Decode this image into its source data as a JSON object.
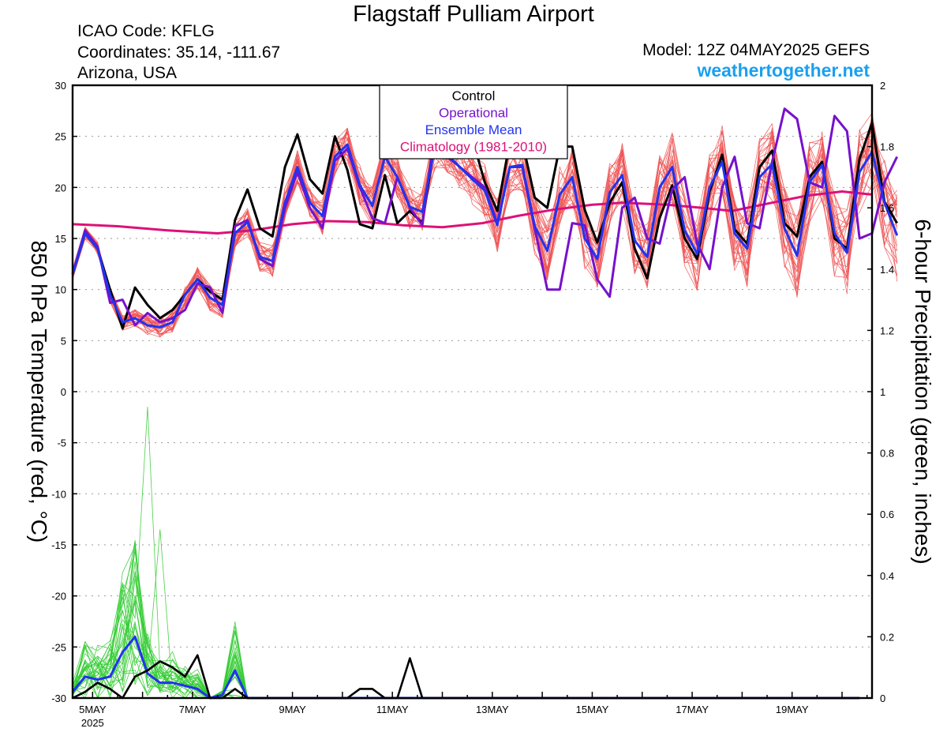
{
  "header": {
    "title": "Flagstaff Pulliam Airport",
    "icao": "ICAO Code: KFLG",
    "coords": "Coordinates: 35.14, -111.67",
    "region": "Arizona, USA",
    "model": "Model: 12Z 04MAY2025 GEFS",
    "site": "weathertogether.net"
  },
  "chart_data": {
    "type": "line",
    "left_axis": {
      "label": "850 hPa Temperature (red, °C)",
      "range": [
        -30,
        30
      ],
      "ticks": [
        30,
        25,
        20,
        15,
        10,
        5,
        0,
        -5,
        -10,
        -15,
        -20,
        -25,
        -30
      ]
    },
    "right_axis": {
      "label": "6-hour Precipitation (green, inches)",
      "range": [
        0,
        2
      ],
      "ticks": [
        "2",
        "1.8",
        "1.6",
        "1.4",
        "1.2",
        "1",
        "0.8",
        "0.6",
        "0.4",
        "0.2",
        "0"
      ]
    },
    "x_axis": {
      "range_days": [
        4.6,
        20.6
      ],
      "ticks": [
        {
          "day": 5,
          "label": "5MAY"
        },
        {
          "day": 7,
          "label": "7MAY"
        },
        {
          "day": 9,
          "label": "9MAY"
        },
        {
          "day": 11,
          "label": "11MAY"
        },
        {
          "day": 13,
          "label": "13MAY"
        },
        {
          "day": 15,
          "label": "15MAY"
        },
        {
          "day": 17,
          "label": "17MAY"
        },
        {
          "day": 19,
          "label": "19MAY"
        }
      ],
      "year_label": "2025"
    },
    "legend": {
      "placement": "top-center",
      "entries": [
        {
          "label": "Control",
          "color": "#000000"
        },
        {
          "label": "Operational",
          "color": "#7711cc"
        },
        {
          "label": "Ensemble Mean",
          "color": "#2233ee"
        },
        {
          "label": "Climatology (1981-2010)",
          "color": "#dd1177"
        }
      ]
    },
    "grid": "horizontal-dotted",
    "colors": {
      "members_temp": "#ee5555",
      "members_precip": "#33cc33",
      "control": "#000000",
      "operational": "#7711cc",
      "mean": "#2233ee",
      "climatology": "#dd1177"
    },
    "temperature": {
      "control": [
        11.5,
        15.5,
        14,
        10,
        6.2,
        10.2,
        8.5,
        7.2,
        8,
        9.5,
        11,
        9.8,
        9,
        16.8,
        19.8,
        16,
        15.2,
        22,
        25.2,
        20.8,
        19.4,
        25,
        21.7,
        16.4,
        16,
        21.2,
        16.5,
        17.7,
        16.5,
        24.5,
        26,
        25,
        24.8,
        20.5,
        17.7,
        24.5,
        24.5,
        19,
        18,
        24,
        24,
        17.8,
        14.6,
        18.5,
        20.5,
        14,
        11.1,
        17,
        20.2,
        15,
        13,
        19.6,
        23.2,
        15.9,
        14.5,
        22,
        23.6,
        16.5,
        15.2,
        21,
        22.5,
        15,
        14,
        22.8,
        26.3,
        18.6,
        16.5
      ],
      "operational": [
        11.5,
        15.8,
        14.2,
        8.7,
        9,
        6.5,
        7.7,
        6.8,
        7.2,
        8,
        10.6,
        10.2,
        7.7,
        16.2,
        16.8,
        13,
        12.3,
        18,
        21.5,
        18,
        16,
        22.6,
        23.8,
        20,
        17,
        16.5,
        21,
        18,
        16.3,
        25.5,
        23,
        22,
        21,
        20,
        16.5,
        22,
        22,
        16,
        10,
        10,
        16.5,
        16.3,
        11,
        9.3,
        18,
        19,
        15,
        14.5,
        19.8,
        21,
        14.5,
        12,
        20,
        23,
        16.5,
        16,
        22.5,
        27.7,
        26.7,
        20.5,
        20,
        27,
        25.5,
        15,
        15.5,
        20.5,
        23
      ],
      "mean": [
        11.5,
        15.5,
        14,
        9.5,
        6.8,
        7.2,
        6.5,
        6.3,
        6.8,
        9.5,
        11,
        9.2,
        8.5,
        15.5,
        16.6,
        13.2,
        12.8,
        18.5,
        22,
        18.5,
        17.2,
        23,
        24.2,
        20.2,
        18.2,
        23,
        21,
        18.1,
        17.6,
        24,
        23.2,
        22,
        20.8,
        19.7,
        16.3,
        22,
        22.2,
        16.2,
        13.8,
        19.3,
        21,
        15,
        13,
        19.5,
        21.2,
        14.8,
        13.2,
        20,
        22,
        15.8,
        13.5,
        20,
        22.5,
        15.5,
        14,
        21,
        22.3,
        16,
        13.3,
        20.5,
        22.2,
        15.5,
        13.6,
        21.5,
        23.5,
        18.5,
        15.3
      ],
      "climatology": [
        [
          4.6,
          16.4
        ],
        [
          5.5,
          16.2
        ],
        [
          6.5,
          15.8
        ],
        [
          7.5,
          15.5
        ],
        [
          8.2,
          15.8
        ],
        [
          9.0,
          16.4
        ],
        [
          9.7,
          16.7
        ],
        [
          10.5,
          16.6
        ],
        [
          11.2,
          16.3
        ],
        [
          12.0,
          16.1
        ],
        [
          12.8,
          16.5
        ],
        [
          13.5,
          17.2
        ],
        [
          14.2,
          17.8
        ],
        [
          15.0,
          18.3
        ],
        [
          15.6,
          18.5
        ],
        [
          16.5,
          18.3
        ],
        [
          17.2,
          18.0
        ],
        [
          17.8,
          17.7
        ],
        [
          18.6,
          18.5
        ],
        [
          19.3,
          19.2
        ],
        [
          20.0,
          19.6
        ],
        [
          20.6,
          19.3
        ]
      ]
    },
    "precipitation": {
      "control": [
        0.0,
        0.02,
        0.05,
        0.03,
        0.0,
        0.07,
        0.09,
        0.12,
        0.1,
        0.07,
        0.14,
        0.0,
        0.0,
        0.03,
        0.0,
        0.0,
        0.0,
        0.0,
        0.0,
        0.0,
        0.0,
        0.0,
        0.0,
        0.03,
        0.03,
        0.0,
        0.0,
        0.13,
        0.0,
        0.0,
        0.0,
        0.0
      ],
      "mean": [
        0.02,
        0.07,
        0.06,
        0.07,
        0.15,
        0.2,
        0.08,
        0.05,
        0.05,
        0.04,
        0.03,
        0.0,
        0.01,
        0.09,
        0.0,
        0.0,
        0.0,
        0.0,
        0.0,
        0.0,
        0.0,
        0.0,
        0.0,
        0.0,
        0.0,
        0.0,
        0.0,
        0.0,
        0.0,
        0.0,
        0.0,
        0.0
      ]
    }
  }
}
